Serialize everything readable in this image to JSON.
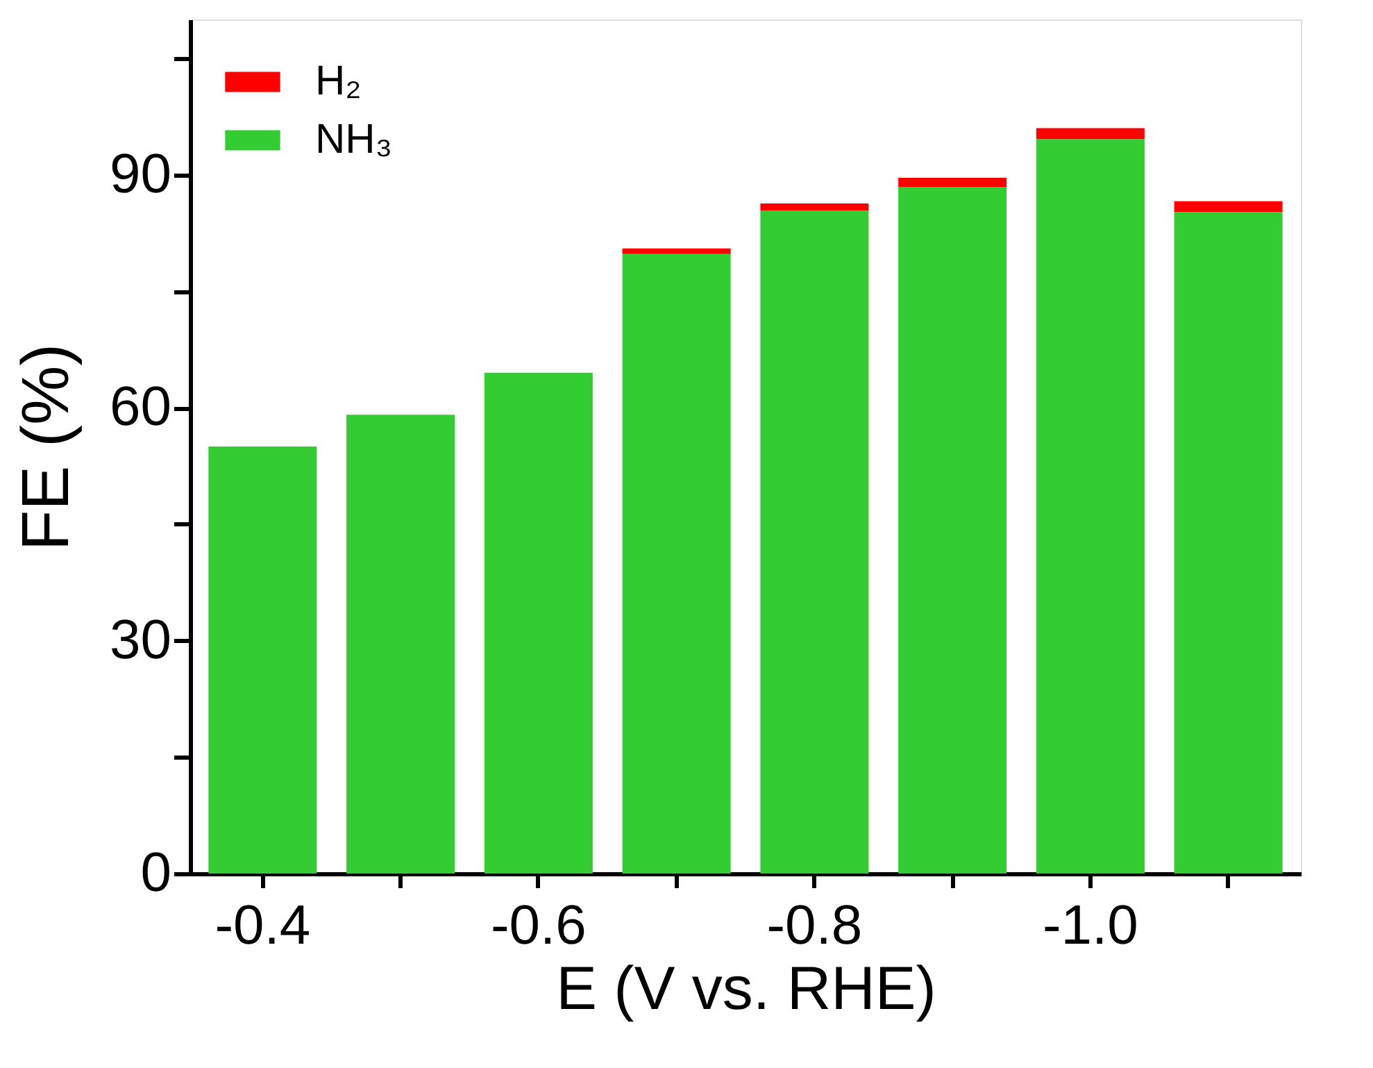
{
  "chart_data": {
    "type": "bar",
    "stacked": true,
    "xlabel": "E (V vs. RHE)",
    "ylabel": "FE (%)",
    "categories": [
      "-0.4",
      null,
      "-0.6",
      null,
      "-0.8",
      null,
      "-1.0",
      null
    ],
    "series": [
      {
        "name": "NH₃",
        "color": "#33cc33",
        "values": [
          55.0,
          59.1,
          64.5,
          79.8,
          85.4,
          88.4,
          94.6,
          85.2
        ]
      },
      {
        "name": "H₂",
        "color": "#ff0000",
        "values": [
          null,
          null,
          null,
          0.7,
          0.9,
          1.2,
          1.4,
          1.4
        ]
      }
    ],
    "ylim": [
      0,
      110
    ],
    "yticks": [
      0,
      {
        "value": 15,
        "label": null
      },
      30,
      {
        "value": 45,
        "label": null
      },
      60,
      {
        "value": 75,
        "label": null
      },
      90,
      {
        "value": 105,
        "label": null
      }
    ],
    "grid": false,
    "legend": "top left"
  }
}
